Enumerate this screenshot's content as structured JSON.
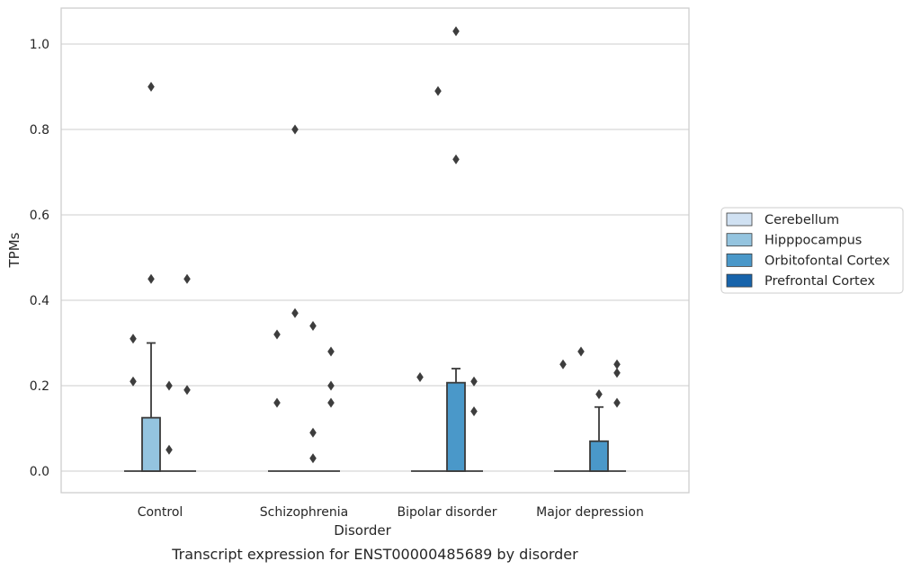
{
  "chart_data": {
    "type": "box",
    "title": "",
    "caption": "Transcript expression for ENST00000485689 by disorder",
    "xlabel": "Disorder",
    "ylabel": "TPMs",
    "ylim": [
      -0.05,
      1.08
    ],
    "yticks": [
      0.0,
      0.2,
      0.4,
      0.6,
      0.8,
      1.0
    ],
    "ytick_labels": [
      "0.0",
      "0.2",
      "0.4",
      "0.6",
      "0.8",
      "1.0"
    ],
    "grid": "horizontal",
    "legend_position": "right",
    "categories": [
      "Control",
      "Schizophrenia",
      "Bipolar disorder",
      "Major depression"
    ],
    "hues": [
      "Cerebellum",
      "Hipppocampus",
      "Orbitofontal Cortex",
      "Prefrontal Cortex"
    ],
    "colors": {
      "Cerebellum": "#d0e1f2",
      "Hipppocampus": "#94c4df",
      "Orbitofontal Cortex": "#4a98c9",
      "Prefrontal Cortex": "#1764ab",
      "edge": "#3a3a3a"
    },
    "boxes": [
      {
        "category": "Control",
        "hue": "Hipppocampus",
        "q1": 0.0,
        "median": 0.0,
        "q3": 0.125,
        "whisker_low": 0.0,
        "whisker_high": 0.3,
        "outliers": [
          0.9,
          0.45,
          0.31,
          0.21,
          0.2,
          0.05,
          0.45,
          0.19
        ],
        "outlier_hue": [
          1,
          1,
          0,
          0,
          2,
          2,
          3,
          3
        ]
      },
      {
        "category": "Schizophrenia",
        "hue": "Orbitofontal Cortex",
        "q1": 0.0,
        "median": 0.0,
        "q3": 0.0,
        "whisker_low": 0.0,
        "whisker_high": 0.0,
        "outliers": [
          0.32,
          0.16,
          0.8,
          0.37,
          0.34,
          0.09,
          0.03,
          0.28,
          0.2,
          0.16
        ],
        "outlier_hue": [
          0,
          0,
          1,
          1,
          2,
          2,
          2,
          3,
          3,
          3
        ]
      },
      {
        "category": "Bipolar disorder",
        "hue": "Orbitofontal Cortex",
        "q1": 0.0,
        "median": 0.0,
        "q3": 0.207,
        "whisker_low": 0.0,
        "whisker_high": 0.24,
        "outliers": [
          0.22,
          0.89,
          1.03,
          0.73,
          0.21,
          0.14
        ],
        "outlier_hue": [
          0,
          1,
          2,
          2,
          3,
          3
        ]
      },
      {
        "category": "Major depression",
        "hue": "Orbitofontal Cortex",
        "q1": 0.0,
        "median": 0.0,
        "q3": 0.07,
        "whisker_low": 0.0,
        "whisker_high": 0.15,
        "outliers": [
          0.25,
          0.28,
          0.18,
          0.25,
          0.23,
          0.16
        ],
        "outlier_hue": [
          0,
          1,
          2,
          3,
          3,
          3
        ]
      }
    ]
  }
}
